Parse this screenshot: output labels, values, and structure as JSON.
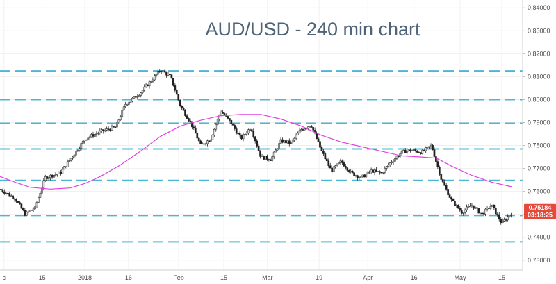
{
  "chart_data": {
    "type": "candlestick",
    "title": "AUD/USD - 240 min chart",
    "y_axis": {
      "position": "right",
      "ylim": [
        0.7257,
        0.8434
      ],
      "ticks": [
        "0.84000",
        "0.83000",
        "0.82000",
        "0.81000",
        "0.80000",
        "0.79000",
        "0.78000",
        "0.77000",
        "0.76000",
        "0.75000",
        "0.74000",
        "0.73000"
      ]
    },
    "x_axis": {
      "xlim": [
        0,
        100
      ],
      "ticks": [
        {
          "label": "c",
          "x": 0.8
        },
        {
          "label": "15",
          "x": 8.4
        },
        {
          "label": "2018",
          "x": 16.9
        },
        {
          "label": "16",
          "x": 25.6
        },
        {
          "label": "Feb",
          "x": 35.6
        },
        {
          "label": "15",
          "x": 44.6
        },
        {
          "label": "Mar",
          "x": 53.3
        },
        {
          "label": "19",
          "x": 63.6
        },
        {
          "label": "Apr",
          "x": 73.3
        },
        {
          "label": "16",
          "x": 82.5
        },
        {
          "label": "May",
          "x": 91.7
        },
        {
          "label": "15",
          "x": 100
        }
      ]
    },
    "horizontal_levels": [
      0.8125,
      0.8,
      0.7897,
      0.7785,
      0.7648,
      0.7495,
      0.738
    ],
    "moving_average": {
      "color": "#e040e0",
      "points": [
        [
          0,
          0.7665
        ],
        [
          3,
          0.764
        ],
        [
          6,
          0.7618
        ],
        [
          10,
          0.761
        ],
        [
          14,
          0.7615
        ],
        [
          17,
          0.7635
        ],
        [
          20,
          0.7665
        ],
        [
          24,
          0.7715
        ],
        [
          28,
          0.7775
        ],
        [
          32,
          0.784
        ],
        [
          36,
          0.7885
        ],
        [
          40,
          0.791
        ],
        [
          44,
          0.793
        ],
        [
          48,
          0.7935
        ],
        [
          52,
          0.7935
        ],
        [
          56,
          0.7915
        ],
        [
          60,
          0.7885
        ],
        [
          64,
          0.7845
        ],
        [
          68,
          0.7815
        ],
        [
          72,
          0.7795
        ],
        [
          76,
          0.7775
        ],
        [
          80,
          0.7755
        ],
        [
          84,
          0.775
        ],
        [
          87,
          0.7745
        ],
        [
          90,
          0.771
        ],
        [
          94,
          0.767
        ],
        [
          98,
          0.764
        ],
        [
          102,
          0.762
        ]
      ]
    },
    "price_path": [
      [
        0,
        0.761
      ],
      [
        3,
        0.757
      ],
      [
        5,
        0.75
      ],
      [
        7,
        0.753
      ],
      [
        9,
        0.766
      ],
      [
        12,
        0.768
      ],
      [
        14,
        0.774
      ],
      [
        17,
        0.783
      ],
      [
        20,
        0.786
      ],
      [
        23,
        0.788
      ],
      [
        25,
        0.798
      ],
      [
        28,
        0.803
      ],
      [
        30,
        0.808
      ],
      [
        32,
        0.813
      ],
      [
        34,
        0.81
      ],
      [
        36,
        0.797
      ],
      [
        38,
        0.79
      ],
      [
        40,
        0.78
      ],
      [
        42,
        0.783
      ],
      [
        44,
        0.795
      ],
      [
        46,
        0.79
      ],
      [
        48,
        0.783
      ],
      [
        50,
        0.788
      ],
      [
        52,
        0.775
      ],
      [
        54,
        0.774
      ],
      [
        56,
        0.782
      ],
      [
        58,
        0.781
      ],
      [
        60,
        0.787
      ],
      [
        62,
        0.789
      ],
      [
        64,
        0.778
      ],
      [
        66,
        0.769
      ],
      [
        68,
        0.773
      ],
      [
        70,
        0.768
      ],
      [
        72,
        0.766
      ],
      [
        74,
        0.769
      ],
      [
        76,
        0.768
      ],
      [
        78,
        0.773
      ],
      [
        80,
        0.777
      ],
      [
        82,
        0.778
      ],
      [
        84,
        0.777
      ],
      [
        86,
        0.78
      ],
      [
        88,
        0.765
      ],
      [
        90,
        0.756
      ],
      [
        92,
        0.751
      ],
      [
        94,
        0.754
      ],
      [
        96,
        0.75
      ],
      [
        98,
        0.754
      ],
      [
        100,
        0.746
      ],
      [
        102,
        0.751
      ]
    ],
    "last_price": {
      "value": 0.7518,
      "label": "0.75184",
      "timer": "03:18:25",
      "color": "#e34a3a"
    }
  }
}
